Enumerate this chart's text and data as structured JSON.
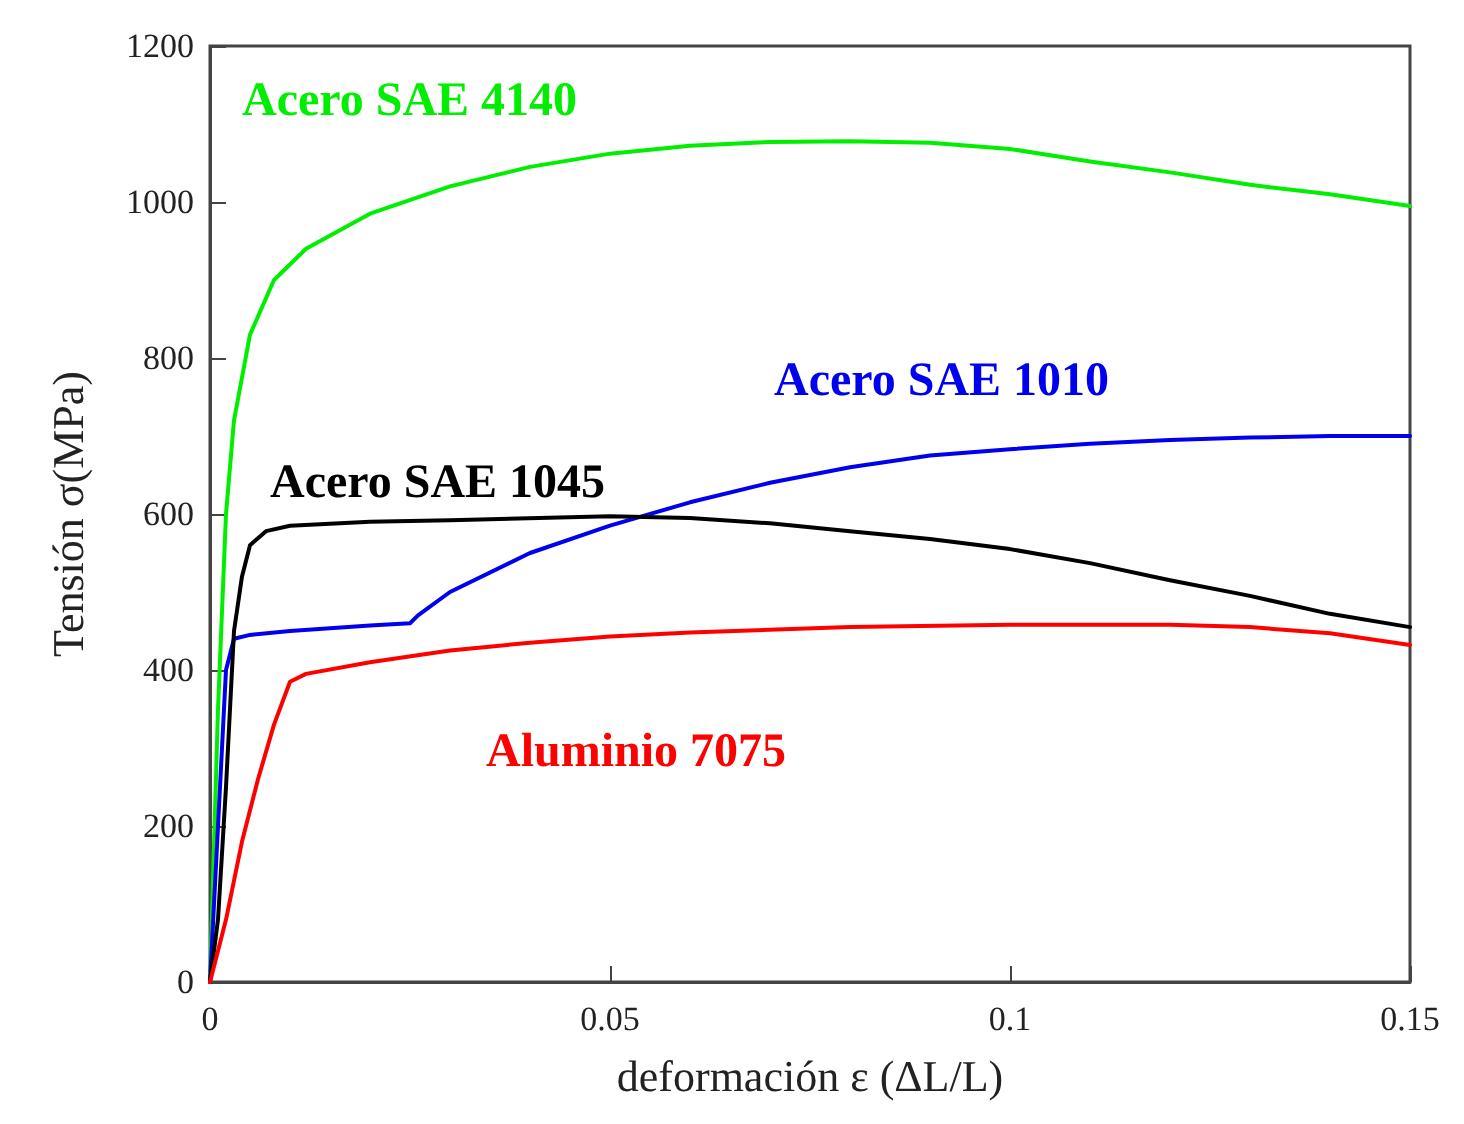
{
  "chart_data": {
    "type": "line",
    "xlabel": "deformación ε (ΔL/L)",
    "ylabel": "Tensión σ(MPa)",
    "xlim": [
      0,
      0.15
    ],
    "xticks": [
      0,
      0.05,
      0.1,
      0.15
    ],
    "ylim": [
      0,
      1200
    ],
    "yticks": [
      0,
      200,
      400,
      600,
      800,
      1000,
      1200
    ],
    "grid": false,
    "legend": false,
    "marker": "none",
    "line_style": "solid",
    "series": [
      {
        "name": "Acero SAE 4140",
        "color": "#00ee00",
        "x": [
          0,
          0.001,
          0.002,
          0.003,
          0.005,
          0.008,
          0.012,
          0.02,
          0.03,
          0.04,
          0.05,
          0.06,
          0.07,
          0.08,
          0.09,
          0.1,
          0.11,
          0.12,
          0.13,
          0.14,
          0.15
        ],
        "values": [
          0,
          350,
          600,
          720,
          830,
          900,
          940,
          985,
          1020,
          1045,
          1062,
          1072,
          1077,
          1078,
          1076,
          1068,
          1052,
          1038,
          1022,
          1010,
          995
        ]
      },
      {
        "name": "Acero SAE 1010",
        "color": "#0000ee",
        "x": [
          0,
          0.001,
          0.002,
          0.003,
          0.005,
          0.01,
          0.02,
          0.025,
          0.026,
          0.03,
          0.04,
          0.05,
          0.06,
          0.07,
          0.08,
          0.09,
          0.1,
          0.11,
          0.12,
          0.13,
          0.14,
          0.15
        ],
        "values": [
          0,
          200,
          400,
          440,
          445,
          450,
          457,
          460,
          470,
          500,
          550,
          585,
          615,
          640,
          660,
          675,
          683,
          690,
          695,
          698,
          700,
          700
        ]
      },
      {
        "name": "Acero SAE 1045",
        "color": "#000000",
        "x": [
          0,
          0.001,
          0.002,
          0.003,
          0.004,
          0.005,
          0.007,
          0.01,
          0.02,
          0.03,
          0.05,
          0.06,
          0.07,
          0.08,
          0.09,
          0.1,
          0.11,
          0.12,
          0.13,
          0.14,
          0.15
        ],
        "values": [
          0,
          80,
          250,
          450,
          520,
          560,
          578,
          585,
          590,
          592,
          597,
          595,
          588,
          578,
          568,
          555,
          537,
          515,
          495,
          472,
          455
        ]
      },
      {
        "name": "Aluminio 7075",
        "color": "#ff0000",
        "x": [
          0,
          0.002,
          0.004,
          0.006,
          0.008,
          0.01,
          0.012,
          0.02,
          0.03,
          0.04,
          0.05,
          0.06,
          0.08,
          0.1,
          0.12,
          0.13,
          0.14,
          0.15
        ],
        "values": [
          0,
          80,
          180,
          260,
          330,
          385,
          395,
          410,
          425,
          435,
          443,
          448,
          455,
          458,
          458,
          455,
          447,
          432
        ]
      }
    ]
  }
}
